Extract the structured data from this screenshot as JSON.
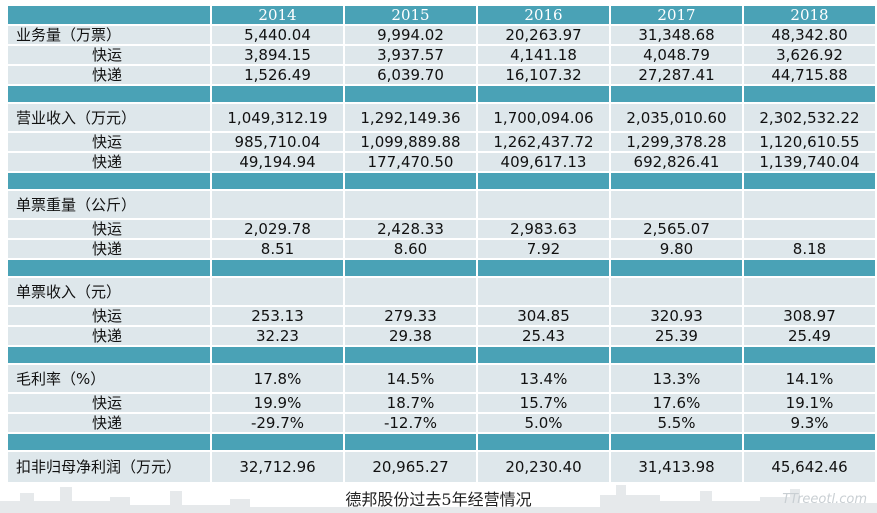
{
  "years": [
    "2014",
    "2015",
    "2016",
    "2017",
    "2018"
  ],
  "sections": [
    {
      "label": "业务量（万票）",
      "total": [
        "5,440.04",
        "9,994.02",
        "20,263.97",
        "31,348.68",
        "48,342.80"
      ],
      "rows": [
        {
          "label": "快运",
          "values": [
            "3,894.15",
            "3,937.57",
            "4,141.18",
            "4,048.79",
            "3,626.92"
          ]
        },
        {
          "label": "快递",
          "values": [
            "1,526.49",
            "6,039.70",
            "16,107.32",
            "27,287.41",
            "44,715.88"
          ]
        }
      ]
    },
    {
      "label": "营业收入（万元）",
      "total": [
        "1,049,312.19",
        "1,292,149.36",
        "1,700,094.06",
        "2,035,010.60",
        "2,302,532.22"
      ],
      "rows": [
        {
          "label": "快运",
          "values": [
            "985,710.04",
            "1,099,889.88",
            "1,262,437.72",
            "1,299,378.28",
            "1,120,610.55"
          ]
        },
        {
          "label": "快递",
          "values": [
            "49,194.94",
            "177,470.50",
            "409,617.13",
            "692,826.41",
            "1,139,740.04"
          ]
        }
      ]
    },
    {
      "label": "单票重量（公斤）",
      "total": [
        "",
        "",
        "",
        "",
        ""
      ],
      "rows": [
        {
          "label": "快运",
          "values": [
            "2,029.78",
            "2,428.33",
            "2,983.63",
            "2,565.07",
            ""
          ]
        },
        {
          "label": "快递",
          "values": [
            "8.51",
            "8.60",
            "7.92",
            "9.80",
            "8.18"
          ]
        }
      ]
    },
    {
      "label": "单票收入（元）",
      "total": [
        "",
        "",
        "",
        "",
        ""
      ],
      "rows": [
        {
          "label": "快运",
          "values": [
            "253.13",
            "279.33",
            "304.85",
            "320.93",
            "308.97"
          ]
        },
        {
          "label": "快递",
          "values": [
            "32.23",
            "29.38",
            "25.43",
            "25.39",
            "25.49"
          ]
        }
      ]
    },
    {
      "label": "毛利率（%）",
      "total": [
        "17.8%",
        "14.5%",
        "13.4%",
        "13.3%",
        "14.1%"
      ],
      "rows": [
        {
          "label": "快运",
          "values": [
            "19.9%",
            "18.7%",
            "15.7%",
            "17.6%",
            "19.1%"
          ]
        },
        {
          "label": "快递",
          "values": [
            "-29.7%",
            "-12.7%",
            "5.0%",
            "5.5%",
            "9.3%"
          ]
        }
      ]
    }
  ],
  "net_profit": {
    "label": "扣非归母净利润（万元）",
    "values": [
      "32,712.96",
      "20,965.27",
      "20,230.40",
      "31,413.98",
      "45,642.46"
    ]
  },
  "caption": "德邦股份过去5年经营情况",
  "watermark": "TTreeotl.com",
  "colors": {
    "header_bg": "#4aa2b6",
    "cell_bg": "#dee7eb",
    "header_text": "#ffffff",
    "text": "#111111"
  }
}
